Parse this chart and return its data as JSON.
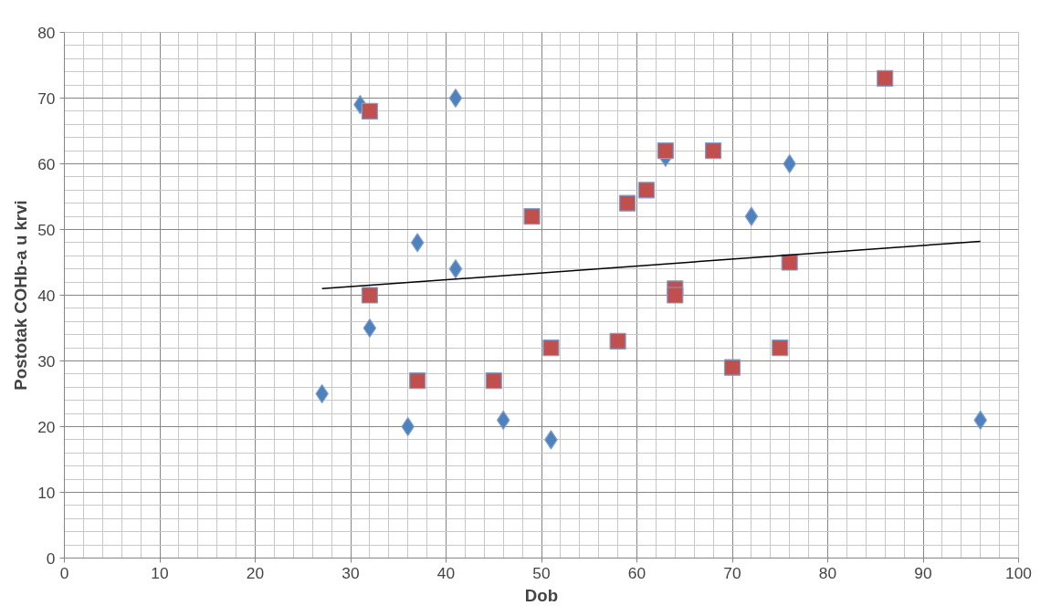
{
  "chart_data": {
    "type": "scatter",
    "xlabel": "Dob",
    "ylabel": "Postotak COHb-a u krvi",
    "xlim": [
      0,
      100
    ],
    "xticks": [
      0,
      10,
      20,
      30,
      40,
      50,
      60,
      70,
      80,
      90,
      100
    ],
    "ylim": [
      0,
      80
    ],
    "yticks": [
      0,
      10,
      20,
      30,
      40,
      50,
      60,
      70,
      80
    ],
    "grid": true,
    "series": [
      {
        "marker": "diamond",
        "color": "#4f81bd",
        "x": [
          27,
          31,
          32,
          36,
          37,
          41,
          41,
          46,
          51,
          63,
          72,
          76,
          96
        ],
        "values": [
          25,
          69,
          35,
          20,
          48,
          70,
          44,
          21,
          18,
          61,
          52,
          60,
          21
        ]
      },
      {
        "marker": "square",
        "color": "#c0504d",
        "x": [
          32,
          32,
          37,
          45,
          49,
          51,
          58,
          59,
          61,
          63,
          64,
          64,
          68,
          70,
          75,
          76,
          86
        ],
        "values": [
          68,
          40,
          27,
          27,
          52,
          32,
          33,
          54,
          56,
          62,
          41,
          40,
          62,
          29,
          32,
          45,
          73
        ]
      },
      {
        "type": "line",
        "marker": "none",
        "color": "#000000",
        "x": [
          27,
          96
        ],
        "values": [
          41,
          48.2
        ]
      }
    ]
  }
}
